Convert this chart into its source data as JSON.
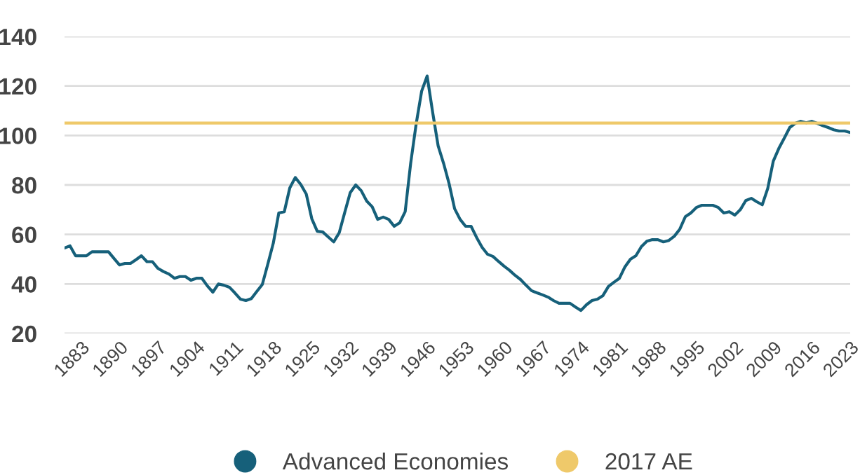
{
  "chart_data": {
    "type": "line",
    "x": [
      1880,
      1881,
      1882,
      1883,
      1884,
      1885,
      1886,
      1887,
      1888,
      1889,
      1890,
      1891,
      1892,
      1893,
      1894,
      1895,
      1896,
      1897,
      1898,
      1899,
      1900,
      1901,
      1902,
      1903,
      1904,
      1905,
      1906,
      1907,
      1908,
      1909,
      1910,
      1911,
      1912,
      1913,
      1914,
      1915,
      1916,
      1917,
      1918,
      1919,
      1920,
      1921,
      1922,
      1923,
      1924,
      1925,
      1926,
      1927,
      1928,
      1929,
      1930,
      1931,
      1932,
      1933,
      1934,
      1935,
      1936,
      1937,
      1938,
      1939,
      1940,
      1941,
      1942,
      1943,
      1944,
      1945,
      1946,
      1947,
      1948,
      1949,
      1950,
      1951,
      1952,
      1953,
      1954,
      1955,
      1956,
      1957,
      1958,
      1959,
      1960,
      1961,
      1962,
      1963,
      1964,
      1965,
      1966,
      1967,
      1968,
      1969,
      1970,
      1971,
      1972,
      1973,
      1974,
      1975,
      1976,
      1977,
      1978,
      1979,
      1980,
      1981,
      1982,
      1983,
      1984,
      1985,
      1986,
      1987,
      1988,
      1989,
      1990,
      1991,
      1992,
      1993,
      1994,
      1995,
      1996,
      1997,
      1998,
      1999,
      2000,
      2001,
      2002,
      2003,
      2004,
      2005,
      2006,
      2007,
      2008,
      2009,
      2010,
      2011,
      2012,
      2013,
      2014,
      2015,
      2016,
      2017,
      2018,
      2019,
      2020,
      2021,
      2022,
      2023
    ],
    "series": [
      {
        "name": "Advanced Economies",
        "color": "#16607a",
        "values": [
          54.5,
          55.4,
          51.4,
          51.4,
          51.4,
          53,
          53,
          53,
          53,
          50.3,
          47.7,
          48.3,
          48.3,
          49.8,
          51.4,
          49,
          49,
          46.3,
          45,
          44,
          42.3,
          43,
          43,
          41.5,
          42.3,
          42.3,
          39.2,
          36.7,
          40,
          39.5,
          38.7,
          36.4,
          33.9,
          33.3,
          34.1,
          37,
          39.8,
          48,
          56.5,
          68.7,
          69.2,
          78.8,
          83,
          80.2,
          76.3,
          66.4,
          61.3,
          61,
          59,
          57,
          60.7,
          68.9,
          76.9,
          80,
          77.7,
          73.5,
          71.2,
          66.1,
          67,
          66.1,
          63.3,
          64.7,
          69.2,
          88.7,
          104.6,
          117.9,
          124,
          109.4,
          95.8,
          88.7,
          80.5,
          70.4,
          66.1,
          63.3,
          63.3,
          58.8,
          54.8,
          52,
          51.1,
          49.1,
          47.2,
          45.5,
          43.5,
          41.8,
          39.5,
          37.3,
          36.4,
          35.6,
          34.7,
          33.3,
          32.2,
          32.2,
          32.2,
          30.7,
          29.3,
          31.6,
          33.3,
          33.9,
          35.3,
          39,
          40.7,
          42.3,
          46.9,
          50,
          51.4,
          55.1,
          57.3,
          57.9,
          57.9,
          57,
          57.6,
          59.3,
          62.2,
          67.2,
          68.7,
          70.9,
          71.8,
          71.8,
          71.8,
          70.9,
          68.7,
          69.2,
          67.8,
          70,
          73.7,
          74.6,
          73.2,
          72,
          78.6,
          89.6,
          94.7,
          98.9,
          103.2,
          104.9,
          105.7,
          105.1,
          105.7,
          104.9,
          104,
          103.2,
          102.3,
          101.8,
          101.8,
          101.2
        ]
      },
      {
        "name": "2017 AE",
        "color": "#efc96a",
        "x": [
          1880,
          2023
        ],
        "values": [
          105,
          105
        ]
      }
    ],
    "xlim": [
      1880,
      2023
    ],
    "xticks": [
      1883,
      1890,
      1897,
      1904,
      1911,
      1918,
      1925,
      1932,
      1939,
      1946,
      1953,
      1960,
      1967,
      1974,
      1981,
      1988,
      1995,
      2002,
      2009,
      2016,
      2023
    ],
    "ylim": [
      20,
      140
    ],
    "yticks": [
      20,
      40,
      60,
      80,
      100,
      120,
      140
    ],
    "grid": "y",
    "legend": "bottom",
    "marker": "none",
    "line_style": "solid"
  }
}
